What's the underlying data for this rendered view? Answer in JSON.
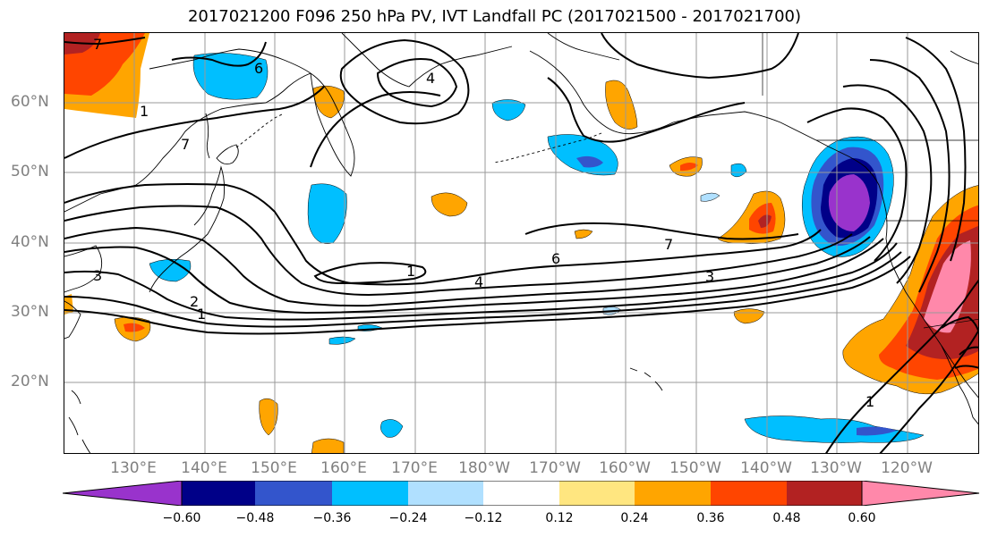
{
  "title": "2017021200 F096 250 hPa PV, IVT Landfall PC (2017021500 - 2017021700)",
  "lat_labels": [
    "60°N",
    "50°N",
    "40°N",
    "30°N",
    "20°N"
  ],
  "lon_labels": [
    "130°E",
    "140°E",
    "150°E",
    "160°E",
    "170°E",
    "180°W",
    "170°W",
    "160°W",
    "150°W",
    "140°W",
    "130°W",
    "120°W"
  ],
  "contour_labels": [
    "7",
    "6",
    "1",
    "7",
    "4",
    "3",
    "2",
    "1",
    "1",
    "7",
    "6",
    "4",
    "3",
    "1"
  ],
  "colorbar": {
    "tick_labels": [
      "−0.60",
      "−0.48",
      "−0.36",
      "−0.24",
      "−0.12",
      "0.12",
      "0.24",
      "0.36",
      "0.48",
      "0.60"
    ],
    "colors": [
      "#9933cc",
      "#000088",
      "#3355cc",
      "#00bfff",
      "#b0e0ff",
      "#ffffff",
      "#ffe680",
      "#ffa500",
      "#ff4500",
      "#b22222",
      "#ff88aa"
    ]
  },
  "colors": {
    "coastline": "#000000",
    "grid": "#999999",
    "contour": "#000000",
    "tick_label": "#808080"
  }
}
